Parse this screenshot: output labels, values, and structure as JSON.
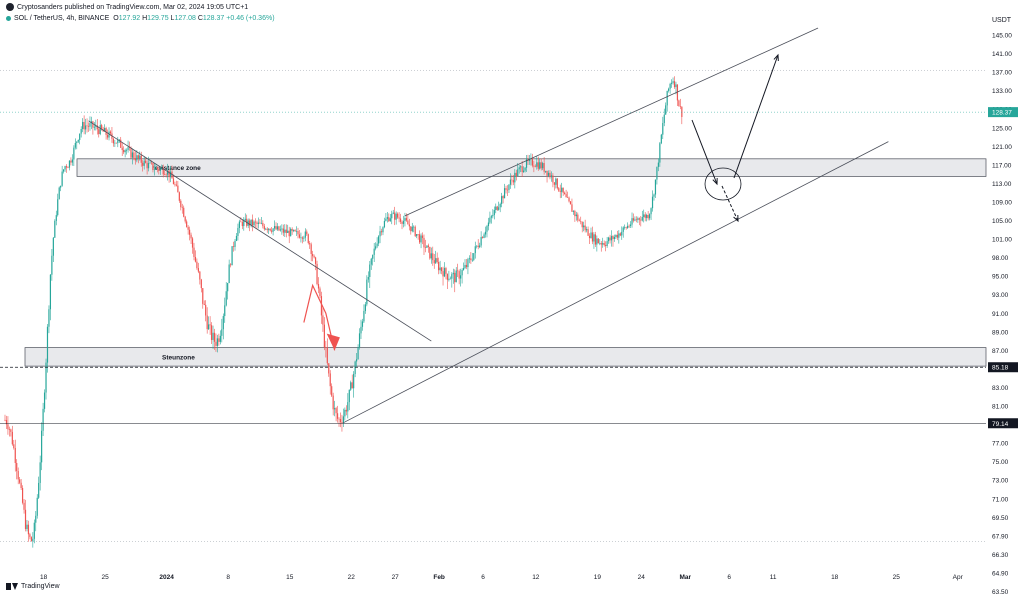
{
  "header": {
    "publisher": "Cryptosanders published on TradingView.com, Mar 02, 2024 19:05 UTC+1",
    "symbol": "SOL / TetherUS, 4h, BINANCE",
    "open_label": "O",
    "open": "127.92",
    "high_label": "H",
    "high": "129.75",
    "low_label": "L",
    "low": "127.08",
    "close_label": "C",
    "close": "128.37",
    "change": "+0.46 (+0.36%)"
  },
  "footer": {
    "brand": "TradingView"
  },
  "chart_data": {
    "type": "candlestick",
    "currency": "USDT",
    "y_ticks": [
      "145.00",
      "141.00",
      "137.00",
      "133.00",
      "129.00",
      "125.00",
      "121.00",
      "117.00",
      "113.00",
      "109.00",
      "105.00",
      "101.00",
      "98.00",
      "95.00",
      "93.00",
      "91.00",
      "89.00",
      "87.00",
      "85.00",
      "83.00",
      "81.00",
      "79.00",
      "77.00",
      "75.00",
      "73.00",
      "71.00",
      "69.50",
      "67.90",
      "66.30",
      "64.90",
      "63.50"
    ],
    "x_ticks": [
      "18",
      "25",
      "2024",
      "8",
      "15",
      "22",
      "27",
      "Feb",
      "6",
      "12",
      "19",
      "24",
      "Mar",
      "6",
      "11",
      "18",
      "25",
      "Apr"
    ],
    "price_tags": [
      {
        "label": "128.37",
        "color": "#26a69a"
      },
      {
        "label": "85.18",
        "color": "#131722"
      },
      {
        "label": "79.14",
        "color": "#131722"
      }
    ],
    "zones": [
      {
        "label": "resistance zone",
        "from": 114.5,
        "to": 118.3
      },
      {
        "label": "Steunzone",
        "from": 85.3,
        "to": 87.3
      }
    ],
    "key_points": [
      {
        "date": "Dec 16",
        "price": 79.5
      },
      {
        "date": "Dec 19",
        "price": 67.5
      },
      {
        "date": "Dec 23",
        "price": 117
      },
      {
        "date": "Dec 25",
        "price": 125.5
      },
      {
        "date": "Jan 3",
        "price": 116
      },
      {
        "date": "Jan 9",
        "price": 88
      },
      {
        "date": "Jan 12",
        "price": 104.5
      },
      {
        "date": "Jan 19",
        "price": 102
      },
      {
        "date": "Jan 23",
        "price": 79.5
      },
      {
        "date": "Jan 29",
        "price": 106
      },
      {
        "date": "Feb 5",
        "price": 95
      },
      {
        "date": "Feb 14",
        "price": 117.5
      },
      {
        "date": "Feb 22",
        "price": 100.5
      },
      {
        "date": "Feb 27",
        "price": 106
      },
      {
        "date": "Mar 1",
        "price": 135.5
      },
      {
        "date": "Mar 2",
        "price": 128.37
      }
    ]
  }
}
